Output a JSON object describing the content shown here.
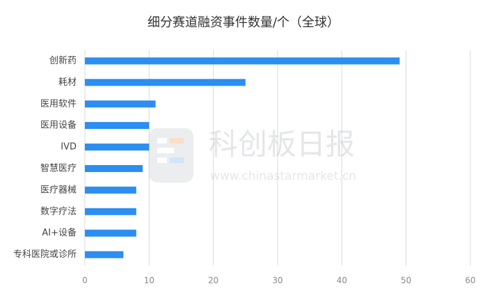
{
  "chart_data": {
    "type": "bar",
    "orientation": "horizontal",
    "title": "细分赛道融资事件数量/个（全球）",
    "categories": [
      "创新药",
      "耗材",
      "医用软件",
      "医用设备",
      "IVD",
      "智慧医疗",
      "医疗器械",
      "数字疗法",
      "AI+设备",
      "专科医院或诊所"
    ],
    "values": [
      49,
      25,
      11,
      10,
      10,
      9,
      8,
      8,
      8,
      6
    ],
    "color": "#2b8ef0",
    "xlim": [
      0,
      60
    ],
    "xticks": [
      0,
      10,
      20,
      30,
      40,
      50,
      60
    ],
    "grid": true,
    "watermark": {
      "title": "科创板日报",
      "url": "www.chinastarmarket.cn"
    }
  }
}
